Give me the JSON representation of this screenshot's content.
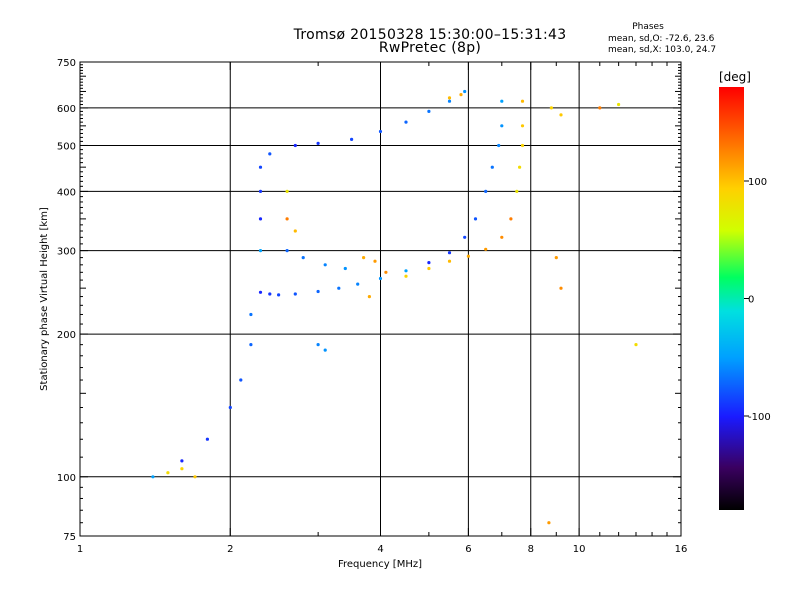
{
  "header": {
    "title": "Tromsø 20150328 15:30:00–15:31:43",
    "subtitle": "RwPretec (8p)",
    "phases_title": "Phases",
    "phases_o": "mean, sd,O: -72.6, 23.6",
    "phases_x": "mean, sd,X: 103.0, 24.7"
  },
  "colorbar": {
    "unit_label": "[deg]",
    "range": [
      -180,
      180
    ],
    "ticks": [
      {
        "value": 100,
        "label": "100"
      },
      {
        "value": 0,
        "label": "0"
      },
      {
        "value": -100,
        "label": "-100"
      }
    ]
  },
  "chart_data": {
    "type": "scatter",
    "title": "Tromsø 20150328 15:30:00–15:31:43",
    "subtitle": "RwPretec (8p)",
    "xlabel": "Frequency [MHz]",
    "ylabel": "Stationary phase Virtual Height [km]",
    "x_scale": "log",
    "y_scale": "log",
    "xlim": [
      1,
      16
    ],
    "ylim": [
      75,
      750
    ],
    "x_ticks": [
      1,
      2,
      4,
      6,
      8,
      10,
      16
    ],
    "y_ticks": [
      75,
      100,
      200,
      300,
      400,
      500,
      600,
      750
    ],
    "x_gridlines": [
      2,
      4,
      6,
      8,
      10
    ],
    "y_gridlines": [
      100,
      200,
      300,
      400,
      500,
      600
    ],
    "color_by": "phase [deg]",
    "series": [
      {
        "name": "O",
        "phase_mean": -72.6,
        "phase_sd": 23.6,
        "points": [
          [
            2.3,
            245
          ],
          [
            2.4,
            243
          ],
          [
            2.5,
            242
          ],
          [
            2.7,
            243
          ],
          [
            3.0,
            246
          ],
          [
            3.3,
            250
          ],
          [
            3.6,
            255
          ],
          [
            4.0,
            262
          ],
          [
            4.5,
            272
          ],
          [
            5.0,
            283
          ],
          [
            5.5,
            297
          ],
          [
            5.9,
            320
          ],
          [
            6.2,
            350
          ],
          [
            6.5,
            400
          ],
          [
            6.7,
            450
          ],
          [
            6.9,
            500
          ],
          [
            7.0,
            550
          ],
          [
            7.0,
            620
          ],
          [
            2.7,
            500
          ],
          [
            3.0,
            505
          ],
          [
            3.5,
            515
          ],
          [
            4.0,
            535
          ],
          [
            4.5,
            560
          ],
          [
            5.0,
            590
          ],
          [
            5.5,
            620
          ],
          [
            5.9,
            650
          ],
          [
            2.3,
            300
          ],
          [
            2.3,
            350
          ],
          [
            2.3,
            400
          ],
          [
            2.3,
            450
          ],
          [
            2.4,
            480
          ],
          [
            2.6,
            300
          ],
          [
            2.8,
            290
          ],
          [
            3.1,
            280
          ],
          [
            3.4,
            275
          ],
          [
            1.4,
            100
          ],
          [
            1.6,
            108
          ],
          [
            1.8,
            120
          ],
          [
            2.0,
            140
          ],
          [
            2.1,
            160
          ],
          [
            2.2,
            190
          ],
          [
            2.2,
            220
          ],
          [
            3.0,
            190
          ],
          [
            3.1,
            185
          ]
        ]
      },
      {
        "name": "X",
        "phase_mean": 103.0,
        "phase_sd": 24.7,
        "points": [
          [
            4.5,
            265
          ],
          [
            5.0,
            275
          ],
          [
            5.5,
            285
          ],
          [
            6.0,
            292
          ],
          [
            6.5,
            302
          ],
          [
            7.0,
            320
          ],
          [
            7.3,
            350
          ],
          [
            7.5,
            400
          ],
          [
            7.6,
            450
          ],
          [
            7.7,
            500
          ],
          [
            7.7,
            550
          ],
          [
            7.7,
            620
          ],
          [
            3.7,
            290
          ],
          [
            3.9,
            285
          ],
          [
            4.1,
            270
          ],
          [
            2.6,
            350
          ],
          [
            2.6,
            400
          ],
          [
            1.5,
            102
          ],
          [
            1.6,
            104
          ],
          [
            1.7,
            100
          ],
          [
            2.7,
            330
          ],
          [
            3.8,
            240
          ],
          [
            9.0,
            290
          ],
          [
            9.2,
            250
          ],
          [
            11.0,
            600
          ],
          [
            12.0,
            610
          ],
          [
            13.0,
            190
          ],
          [
            8.8,
            600
          ],
          [
            9.2,
            580
          ],
          [
            5.5,
            630
          ],
          [
            5.8,
            640
          ],
          [
            8.7,
            80
          ]
        ]
      }
    ]
  }
}
